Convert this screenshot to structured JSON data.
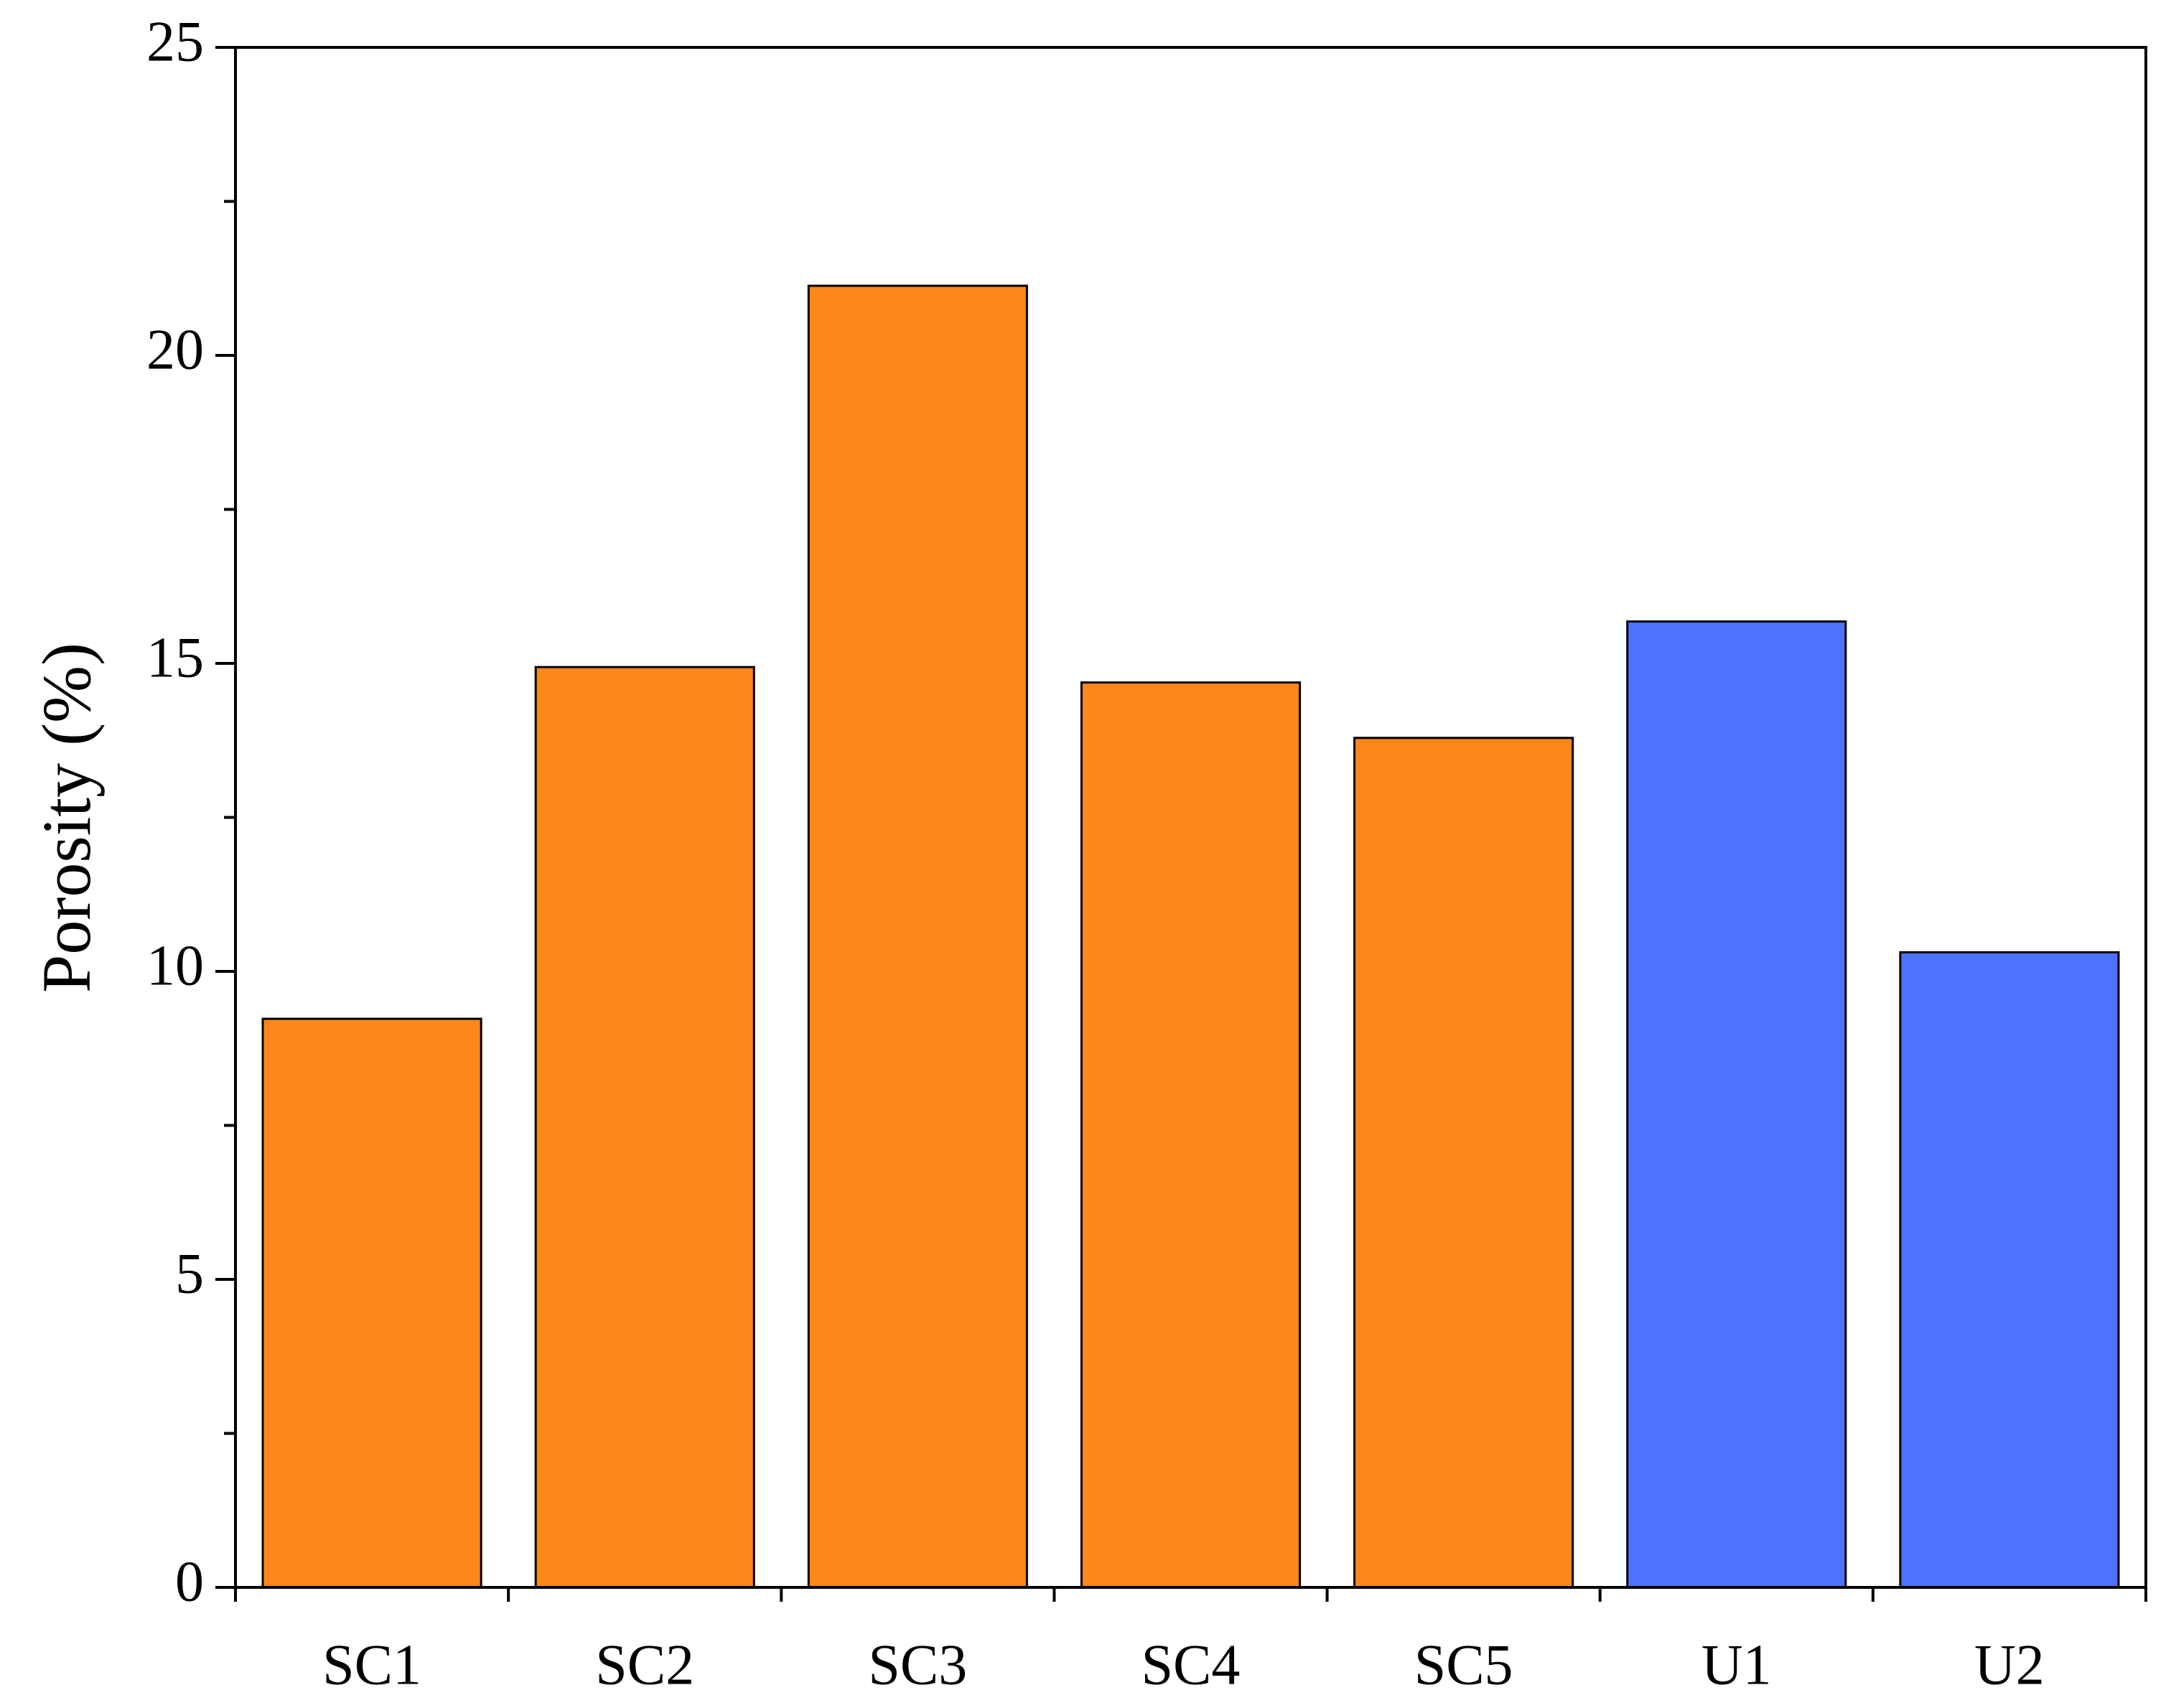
{
  "chart_data": {
    "type": "bar",
    "y_label": "Porosity (%)",
    "categories": [
      "SC1",
      "SC2",
      "SC3",
      "SC4",
      "SC5",
      "U1",
      "U2"
    ],
    "values": [
      9.23,
      14.94,
      21.13,
      14.69,
      13.79,
      15.68,
      10.31
    ],
    "colors": [
      "#fd8719",
      "#fd8719",
      "#fd8719",
      "#fd8719",
      "#fd8719",
      "#4d73fe",
      "#4d73fe"
    ],
    "ylim": [
      0,
      25
    ],
    "yticks": [
      0,
      5,
      10,
      15,
      20,
      25
    ],
    "grid": false
  }
}
